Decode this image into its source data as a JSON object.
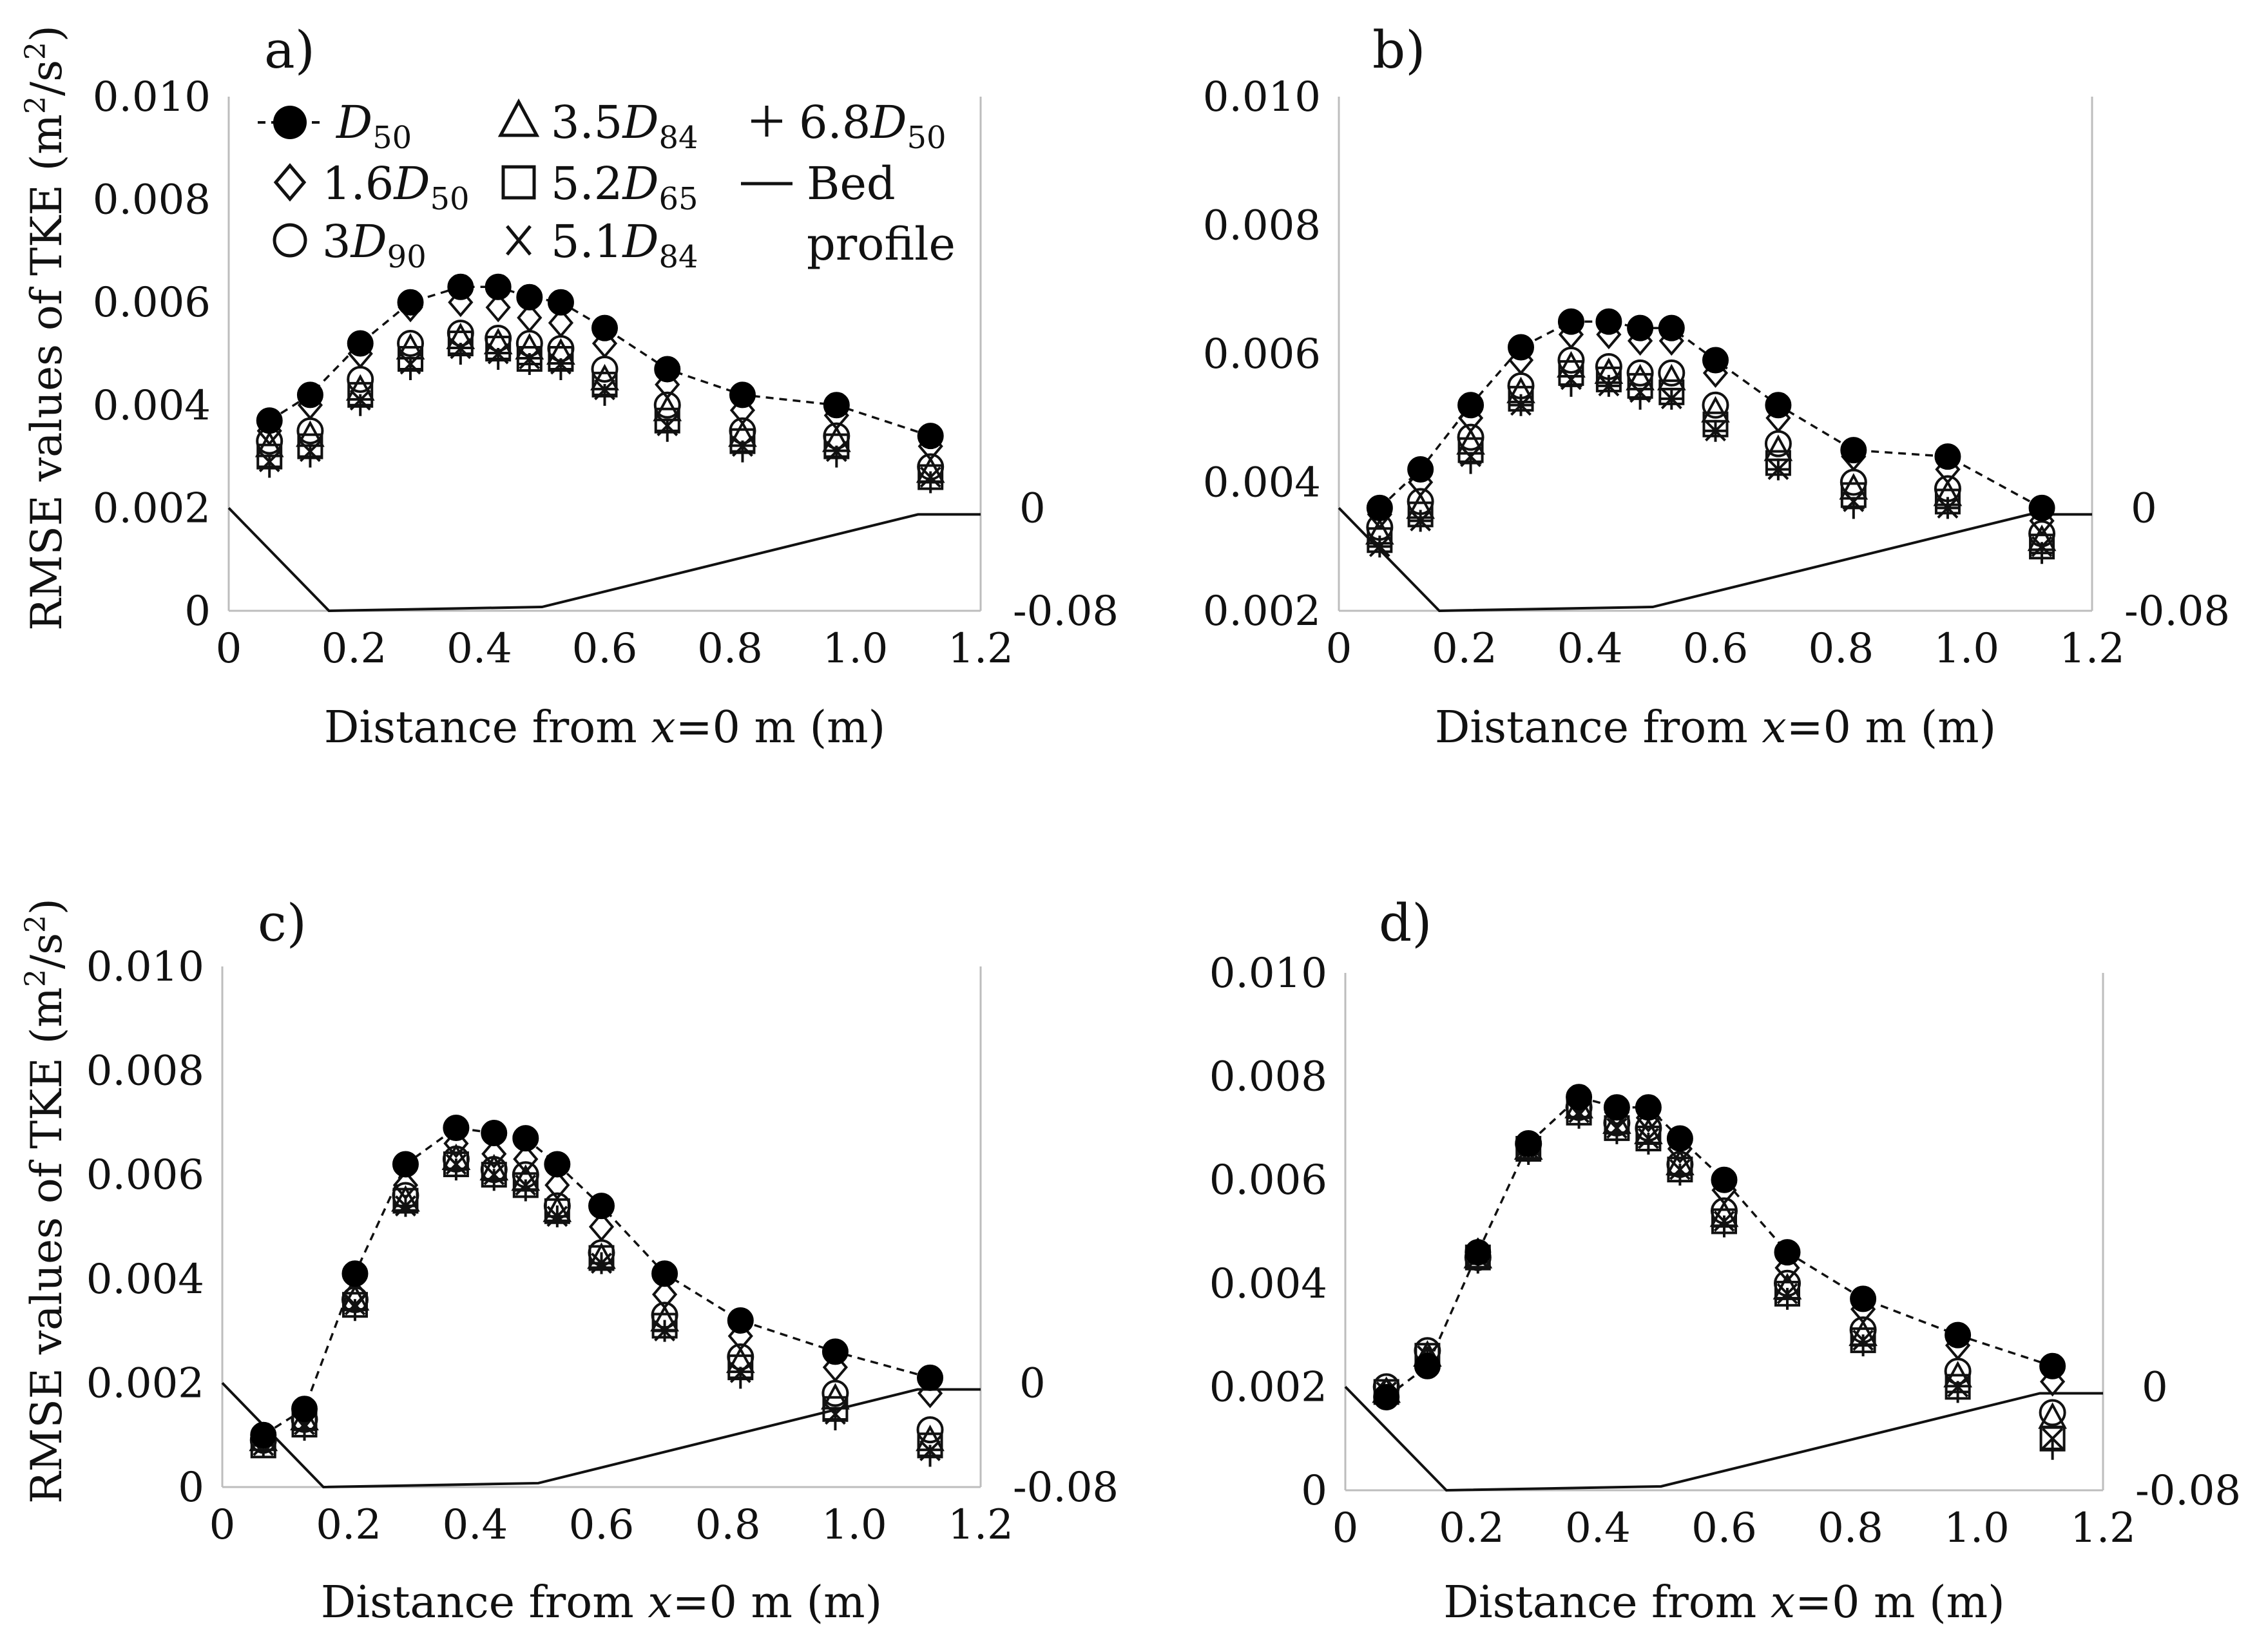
{
  "figure": {
    "ylabel_prefix": "RMSE values of  TKE (m",
    "ylabel_sup": "2",
    "ylabel_mid": "/s",
    "ylabel_sup2": "2",
    "ylabel_suffix": ")",
    "xlabel_prefix": "Distance from ",
    "xlabel_var": "x",
    "xlabel_suffix": "=0 m (m)",
    "right_axis_ticks": [
      "0",
      "-0.08"
    ]
  },
  "legend": [
    {
      "symbol": "filled-circle",
      "label_italic": "D",
      "label_sub": "50",
      "label_prefix": ""
    },
    {
      "symbol": "diamond",
      "label_prefix": "1.6",
      "label_italic": "D",
      "label_sub": "50"
    },
    {
      "symbol": "circle",
      "label_prefix": "3",
      "label_italic": "D",
      "label_sub": "90"
    },
    {
      "symbol": "triangle",
      "label_prefix": "3.5",
      "label_italic": "D",
      "label_sub": "84"
    },
    {
      "symbol": "square",
      "label_prefix": "5.2",
      "label_italic": "D",
      "label_sub": "65"
    },
    {
      "symbol": "x",
      "label_prefix": "5.1",
      "label_italic": "D",
      "label_sub": "84"
    },
    {
      "symbol": "plus",
      "label_prefix": "6.8",
      "label_italic": "D",
      "label_sub": "50"
    },
    {
      "symbol": "line",
      "label_line1": "Bed",
      "label_line2": "profile"
    }
  ],
  "chart_data": [
    {
      "panel": "a)",
      "type": "scatter",
      "xlabel": "Distance from x=0 m (m)",
      "ylabel": "RMSE values of  TKE (m2/s2)",
      "xlim": [
        0,
        1.2
      ],
      "ylim": [
        0,
        0.01
      ],
      "xticks": [
        "0",
        "0.2",
        "0.4",
        "0.6",
        "0.8",
        "1.0",
        "1.2"
      ],
      "yticks": [
        "0",
        "0.002",
        "0.004",
        "0.006",
        "0.008",
        "0.010"
      ],
      "x": [
        0.065,
        0.13,
        0.21,
        0.29,
        0.37,
        0.43,
        0.48,
        0.53,
        0.6,
        0.7,
        0.82,
        0.97,
        1.12
      ],
      "series": [
        {
          "name": "D50",
          "values": [
            0.0037,
            0.0042,
            0.0052,
            0.006,
            0.0063,
            0.0063,
            0.0061,
            0.006,
            0.0055,
            0.0047,
            0.0042,
            0.004,
            0.0034
          ]
        },
        {
          "name": "1.6D50",
          "values": [
            0.0035,
            0.004,
            0.005,
            0.0059,
            0.006,
            0.0059,
            0.0057,
            0.0056,
            0.0052,
            0.0044,
            0.0039,
            0.0038,
            0.0032
          ]
        },
        {
          "name": "3D90",
          "values": [
            0.0033,
            0.0035,
            0.0045,
            0.0052,
            0.0054,
            0.0053,
            0.0052,
            0.0051,
            0.0047,
            0.004,
            0.0035,
            0.0034,
            0.0028
          ]
        },
        {
          "name": "3.5D84",
          "values": [
            0.0032,
            0.0034,
            0.0043,
            0.0051,
            0.0053,
            0.0052,
            0.0051,
            0.005,
            0.0045,
            0.0039,
            0.0034,
            0.0033,
            0.0027
          ]
        },
        {
          "name": "5.2D65",
          "values": [
            0.003,
            0.0032,
            0.0042,
            0.0049,
            0.0052,
            0.0051,
            0.0049,
            0.0049,
            0.0044,
            0.0037,
            0.0033,
            0.0032,
            0.0026
          ]
        },
        {
          "name": "5.1D84",
          "values": [
            0.0029,
            0.0031,
            0.0041,
            0.0048,
            0.0051,
            0.005,
            0.0049,
            0.0048,
            0.0043,
            0.0036,
            0.0032,
            0.0031,
            0.0026
          ]
        },
        {
          "name": "6.8D50",
          "values": [
            0.0028,
            0.003,
            0.004,
            0.0047,
            0.005,
            0.0049,
            0.0048,
            0.0047,
            0.0042,
            0.0035,
            0.0031,
            0.003,
            0.0025
          ]
        }
      ],
      "bed_profile": {
        "right_axis": [
          -0.08,
          0
        ],
        "x": [
          0,
          0.16,
          0.5,
          1.1,
          1.2
        ],
        "y": [
          0,
          -0.08,
          -0.077,
          -0.005,
          -0.005
        ]
      }
    },
    {
      "panel": "b)",
      "type": "scatter",
      "xlabel": "Distance from x=0 m (m)",
      "ylabel": "",
      "xlim": [
        0,
        1.2
      ],
      "ylim": [
        0.002,
        0.01
      ],
      "xticks": [
        "0",
        "0.2",
        "0.4",
        "0.6",
        "0.8",
        "1.0",
        "1.2"
      ],
      "yticks": [
        "0.002",
        "0.004",
        "0.006",
        "0.008",
        "0.010"
      ],
      "x": [
        0.065,
        0.13,
        0.21,
        0.29,
        0.37,
        0.43,
        0.48,
        0.53,
        0.6,
        0.7,
        0.82,
        0.97,
        1.12
      ],
      "series": [
        {
          "name": "D50",
          "values": [
            0.0036,
            0.0042,
            0.0052,
            0.0061,
            0.0065,
            0.0065,
            0.0064,
            0.0064,
            0.0059,
            0.0052,
            0.0045,
            0.0044,
            0.0036
          ]
        },
        {
          "name": "1.6D50",
          "values": [
            0.0035,
            0.004,
            0.005,
            0.0059,
            0.0063,
            0.0063,
            0.0062,
            0.0062,
            0.0057,
            0.005,
            0.0044,
            0.0042,
            0.0034
          ]
        },
        {
          "name": "3D90",
          "values": [
            0.0033,
            0.0037,
            0.0047,
            0.0055,
            0.0059,
            0.0058,
            0.0057,
            0.0057,
            0.0052,
            0.0046,
            0.004,
            0.0039,
            0.0032
          ]
        },
        {
          "name": "3.5D84",
          "values": [
            0.0032,
            0.0036,
            0.0046,
            0.0054,
            0.0058,
            0.0057,
            0.0056,
            0.0056,
            0.0051,
            0.0045,
            0.0039,
            0.0038,
            0.0031
          ]
        },
        {
          "name": "5.2D65",
          "values": [
            0.0031,
            0.0035,
            0.0045,
            0.0053,
            0.0057,
            0.0056,
            0.0055,
            0.0054,
            0.0049,
            0.0043,
            0.0038,
            0.0037,
            0.003
          ]
        },
        {
          "name": "5.1D84",
          "values": [
            0.003,
            0.0034,
            0.0044,
            0.0052,
            0.0056,
            0.0055,
            0.0054,
            0.0053,
            0.0048,
            0.0042,
            0.0037,
            0.0036,
            0.003
          ]
        },
        {
          "name": "6.8D50",
          "values": [
            0.003,
            0.0034,
            0.0043,
            0.0052,
            0.0055,
            0.0055,
            0.0053,
            0.0053,
            0.0048,
            0.0042,
            0.0036,
            0.0036,
            0.0029
          ]
        }
      ],
      "bed_profile": {
        "right_axis": [
          -0.08,
          0
        ],
        "x": [
          0,
          0.16,
          0.5,
          1.1,
          1.2
        ],
        "y": [
          0,
          -0.08,
          -0.077,
          -0.005,
          -0.005
        ]
      }
    },
    {
      "panel": "c)",
      "type": "scatter",
      "xlabel": "Distance from x=0 m (m)",
      "ylabel": "RMSE values of  TKE (m2/s2)",
      "xlim": [
        0,
        1.2
      ],
      "ylim": [
        0,
        0.01
      ],
      "xticks": [
        "0",
        "0.2",
        "0.4",
        "0.6",
        "0.8",
        "1.0",
        "1.2"
      ],
      "yticks": [
        "0",
        "0.002",
        "0.004",
        "0.006",
        "0.008",
        "0.010"
      ],
      "x": [
        0.065,
        0.13,
        0.21,
        0.29,
        0.37,
        0.43,
        0.48,
        0.53,
        0.6,
        0.7,
        0.82,
        0.97,
        1.12
      ],
      "series": [
        {
          "name": "D50",
          "values": [
            0.001,
            0.0015,
            0.0041,
            0.0062,
            0.0069,
            0.0068,
            0.0067,
            0.0062,
            0.0054,
            0.0041,
            0.0032,
            0.0026,
            0.0021
          ]
        },
        {
          "name": "1.6D50",
          "values": [
            0.0009,
            0.0014,
            0.0037,
            0.0058,
            0.0066,
            0.0064,
            0.0063,
            0.0058,
            0.005,
            0.0037,
            0.0029,
            0.0023,
            0.0018
          ]
        },
        {
          "name": "3D90",
          "values": [
            0.0009,
            0.0013,
            0.0036,
            0.0056,
            0.0063,
            0.0061,
            0.006,
            0.0054,
            0.0045,
            0.0033,
            0.0025,
            0.0018,
            0.0011
          ]
        },
        {
          "name": "3.5D84",
          "values": [
            0.0009,
            0.0013,
            0.0036,
            0.0055,
            0.0063,
            0.0061,
            0.0059,
            0.0053,
            0.0044,
            0.0032,
            0.0024,
            0.0017,
            0.0009
          ]
        },
        {
          "name": "5.2D65",
          "values": [
            0.0008,
            0.0012,
            0.0035,
            0.0055,
            0.0062,
            0.006,
            0.0058,
            0.0053,
            0.0044,
            0.0031,
            0.0023,
            0.0015,
            0.0008
          ]
        },
        {
          "name": "5.1D84",
          "values": [
            0.0008,
            0.0012,
            0.0035,
            0.0054,
            0.0062,
            0.006,
            0.0058,
            0.0052,
            0.0043,
            0.003,
            0.0022,
            0.0014,
            0.0007
          ]
        },
        {
          "name": "6.8D50",
          "values": [
            0.0008,
            0.0011,
            0.0034,
            0.0054,
            0.0061,
            0.0059,
            0.0057,
            0.0052,
            0.0043,
            0.003,
            0.0021,
            0.0013,
            0.0006
          ]
        }
      ],
      "bed_profile": {
        "right_axis": [
          -0.08,
          0
        ],
        "x": [
          0,
          0.16,
          0.5,
          1.1,
          1.2
        ],
        "y": [
          0,
          -0.08,
          -0.077,
          -0.005,
          -0.005
        ]
      }
    },
    {
      "panel": "d)",
      "type": "scatter",
      "xlabel": "Distance from x=0 m (m)",
      "ylabel": "",
      "xlim": [
        0,
        1.2
      ],
      "ylim": [
        0,
        0.01
      ],
      "xticks": [
        "0",
        "0.2",
        "0.4",
        "0.6",
        "0.8",
        "1.0",
        "1.2"
      ],
      "yticks": [
        "0",
        "0.002",
        "0.004",
        "0.006",
        "0.008",
        "0.010"
      ],
      "x": [
        0.065,
        0.13,
        0.21,
        0.29,
        0.37,
        0.43,
        0.48,
        0.53,
        0.6,
        0.7,
        0.82,
        0.97,
        1.12
      ],
      "series": [
        {
          "name": "D50",
          "values": [
            0.0018,
            0.0024,
            0.0046,
            0.0067,
            0.0076,
            0.0074,
            0.0074,
            0.0068,
            0.006,
            0.0046,
            0.0037,
            0.003,
            0.0024
          ]
        },
        {
          "name": "1.6D50",
          "values": [
            0.0019,
            0.0025,
            0.0046,
            0.0066,
            0.0075,
            0.0073,
            0.0072,
            0.0066,
            0.0058,
            0.0043,
            0.0035,
            0.0028,
            0.0021
          ]
        },
        {
          "name": "3D90",
          "values": [
            0.002,
            0.0027,
            0.0045,
            0.0067,
            0.0074,
            0.0071,
            0.007,
            0.0063,
            0.0054,
            0.004,
            0.0031,
            0.0023,
            0.0015
          ]
        },
        {
          "name": "3.5D84",
          "values": [
            0.0019,
            0.0026,
            0.0045,
            0.0066,
            0.0074,
            0.0071,
            0.0069,
            0.0063,
            0.0053,
            0.0039,
            0.003,
            0.0022,
            0.0014
          ]
        },
        {
          "name": "5.2D65",
          "values": [
            0.0019,
            0.0026,
            0.0045,
            0.0066,
            0.0073,
            0.007,
            0.0068,
            0.0062,
            0.0052,
            0.0038,
            0.0029,
            0.002,
            0.001
          ]
        },
        {
          "name": "5.1D84",
          "values": [
            0.0019,
            0.0026,
            0.0045,
            0.0066,
            0.0073,
            0.007,
            0.0068,
            0.0062,
            0.0052,
            0.0038,
            0.0029,
            0.002,
            0.001
          ]
        },
        {
          "name": "6.8D50",
          "values": [
            0.0018,
            0.0025,
            0.0044,
            0.0065,
            0.0072,
            0.0069,
            0.0067,
            0.0061,
            0.0051,
            0.0037,
            0.0028,
            0.0019,
            0.0008
          ]
        }
      ],
      "bed_profile": {
        "right_axis": [
          -0.08,
          0
        ],
        "x": [
          0,
          0.16,
          0.5,
          1.1,
          1.2
        ],
        "y": [
          0,
          -0.08,
          -0.077,
          -0.005,
          -0.005
        ]
      }
    }
  ]
}
